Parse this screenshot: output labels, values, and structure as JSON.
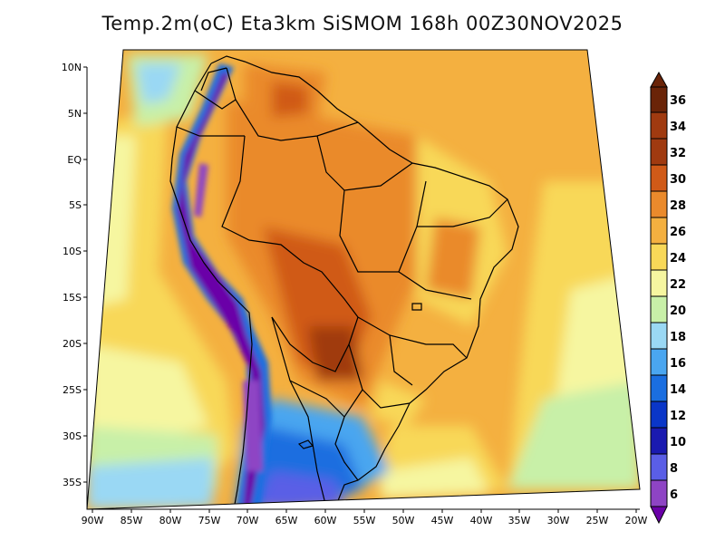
{
  "title": "Temp.2m(oC) Eta3km SiSMOM 168h 00Z30NOV2025",
  "lat_labels": [
    "10N",
    "5N",
    "EQ",
    "5S",
    "10S",
    "15S",
    "20S",
    "25S",
    "30S",
    "35S"
  ],
  "lon_labels": [
    "90W",
    "85W",
    "80W",
    "75W",
    "70W",
    "65W",
    "60W",
    "55W",
    "50W",
    "45W",
    "40W",
    "35W",
    "30W",
    "25W",
    "20W"
  ],
  "colorbar": {
    "labels": [
      "6",
      "8",
      "10",
      "12",
      "14",
      "16",
      "18",
      "20",
      "22",
      "24",
      "26",
      "28",
      "30",
      "32",
      "34",
      "36"
    ],
    "colors": [
      "#6a00a8",
      "#8e44c4",
      "#5a5ee6",
      "#1a1ab0",
      "#0a36c8",
      "#1a6ee0",
      "#4aa6f0",
      "#9ad8f4",
      "#c8f0a8",
      "#f6f6a0",
      "#f8d858",
      "#f4b040",
      "#ea8a2c",
      "#d05a18",
      "#a03a10",
      "#6a2408"
    ]
  }
}
